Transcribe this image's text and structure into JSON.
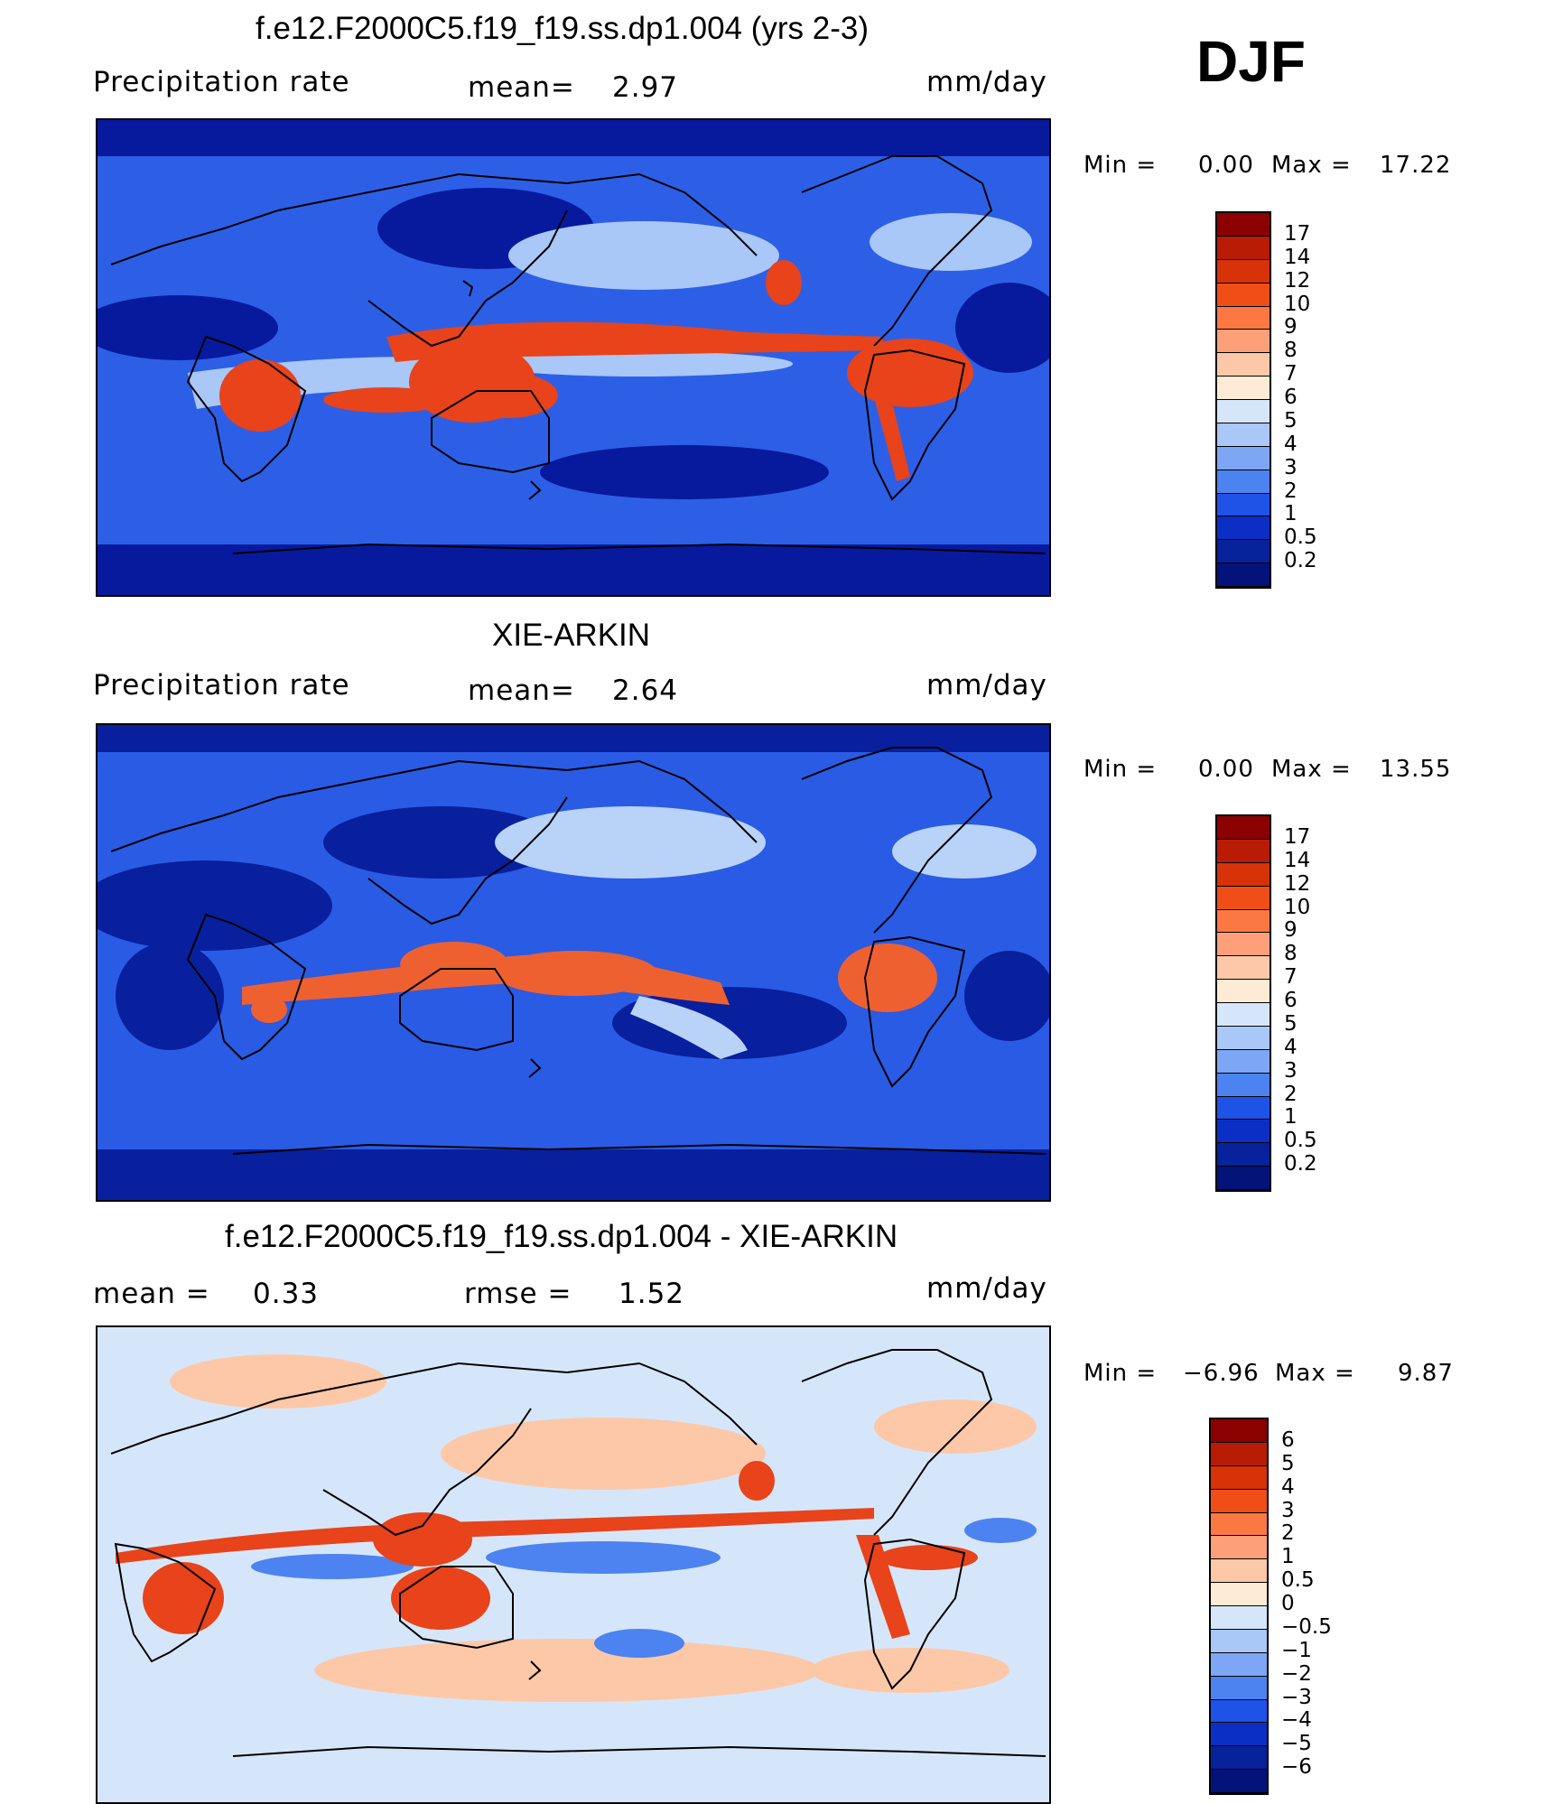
{
  "season": "DJF",
  "panels": [
    {
      "title": "f.e12.F2000C5.f19_f19.ss.dp1.004 (yrs 2-3)",
      "left_label": "Precipitation  rate",
      "center_label": "mean=",
      "center_value": "2.97",
      "right_label": "mm/day",
      "minmax": {
        "min_label": "Min  =",
        "min_value": "0.00",
        "max_label": "Max  =",
        "max_value": "17.22"
      },
      "legend_ticks": [
        "17",
        "14",
        "12",
        "10",
        "9",
        "8",
        "7",
        "6",
        "5",
        "4",
        "3",
        "2",
        "1",
        "0.5",
        "0.2"
      ],
      "legend_colors": [
        "#8b0000",
        "#b81c05",
        "#d83208",
        "#ef4f16",
        "#fb7843",
        "#fda07a",
        "#fdc8a8",
        "#fdebd5",
        "#d6e6fa",
        "#a9c7f7",
        "#7da7f5",
        "#4c83f0",
        "#1f52e6",
        "#0b2fc4",
        "#06239c",
        "#03137a"
      ],
      "map_colors": {
        "ocean": "#2d5fe6",
        "dry": "#071a9e",
        "wet": "#e8431a",
        "moderate": "#a9c7f7",
        "land": "#1f4fd8"
      }
    },
    {
      "title": "XIE-ARKIN",
      "left_label": "Precipitation  rate",
      "center_label": "mean=",
      "center_value": "2.64",
      "right_label": "mm/day",
      "minmax": {
        "min_label": "Min  =",
        "min_value": "0.00",
        "max_label": "Max  =",
        "max_value": "13.55"
      },
      "legend_ticks": [
        "17",
        "14",
        "12",
        "10",
        "9",
        "8",
        "7",
        "6",
        "5",
        "4",
        "3",
        "2",
        "1",
        "0.5",
        "0.2"
      ],
      "legend_colors": [
        "#8b0000",
        "#b81c05",
        "#d83208",
        "#ef4f16",
        "#fb7843",
        "#fda07a",
        "#fdc8a8",
        "#fdebd5",
        "#d6e6fa",
        "#a9c7f7",
        "#7da7f5",
        "#4c83f0",
        "#1f52e6",
        "#0b2fc4",
        "#06239c",
        "#03137a"
      ],
      "map_colors": {
        "ocean": "#2a5be4",
        "dry": "#08209e",
        "wet": "#ef6030",
        "moderate": "#b9d2f8",
        "land": "#2150d8"
      }
    },
    {
      "title": "f.e12.F2000C5.f19_f19.ss.dp1.004 - XIE-ARKIN",
      "left_label": "mean  =",
      "left_value": "0.33",
      "center_label": "rmse  =",
      "center_value": "1.52",
      "right_label": "mm/day",
      "minmax": {
        "min_label": "Min  =",
        "min_value": "−6.96",
        "max_label": "Max  =",
        "max_value": "9.87"
      },
      "legend_ticks": [
        "6",
        "5",
        "4",
        "3",
        "2",
        "1",
        "0.5",
        "0",
        "−0.5",
        "−1",
        "−2",
        "−3",
        "−4",
        "−5",
        "−6"
      ],
      "legend_colors": [
        "#8b0000",
        "#b81c05",
        "#d83208",
        "#ef4f16",
        "#fb7843",
        "#fda07a",
        "#fdc8a8",
        "#fdebd5",
        "#d6e6fa",
        "#a9c7f7",
        "#7da7f5",
        "#4c83f0",
        "#1f52e6",
        "#0b2fc4",
        "#06239c",
        "#03137a"
      ],
      "map_colors": {
        "ocean": "#d6e6fa",
        "dry": "#4c83f0",
        "wet": "#e8431a",
        "moderate": "#fdc8a8",
        "land": "#e9f1fc"
      }
    }
  ]
}
